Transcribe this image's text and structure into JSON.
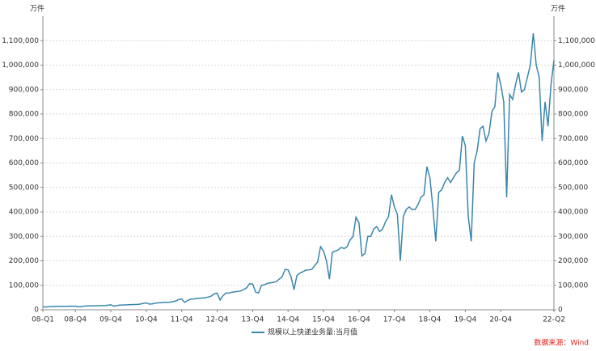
{
  "chart_data": {
    "type": "line",
    "y_unit": "万件",
    "y2_unit": "万件",
    "categories": [
      "08-Q1",
      null,
      null,
      null,
      null,
      null,
      null,
      null,
      null,
      null,
      null,
      "08-Q4",
      null,
      null,
      null,
      null,
      null,
      null,
      null,
      null,
      null,
      null,
      null,
      "09-Q4",
      null,
      null,
      null,
      null,
      null,
      null,
      null,
      null,
      null,
      null,
      null,
      "10-Q4",
      null,
      null,
      null,
      null,
      null,
      null,
      null,
      null,
      null,
      null,
      null,
      "11-Q4",
      null,
      null,
      null,
      null,
      null,
      null,
      null,
      null,
      null,
      null,
      null,
      "12-Q4",
      null,
      null,
      null,
      null,
      null,
      null,
      null,
      null,
      null,
      null,
      null,
      "13-Q4",
      null,
      null,
      null,
      null,
      null,
      null,
      null,
      null,
      null,
      null,
      null,
      "14-Q4",
      null,
      null,
      null,
      null,
      null,
      null,
      null,
      null,
      null,
      null,
      null,
      "15-Q4",
      null,
      null,
      null,
      null,
      null,
      null,
      null,
      null,
      null,
      null,
      null,
      "16-Q4",
      null,
      null,
      null,
      null,
      null,
      null,
      null,
      null,
      null,
      null,
      null,
      "17-Q4",
      null,
      null,
      null,
      null,
      null,
      null,
      null,
      null,
      null,
      null,
      null,
      "18-Q4",
      null,
      null,
      null,
      null,
      null,
      null,
      null,
      null,
      null,
      null,
      null,
      "19-Q4",
      null,
      null,
      null,
      null,
      null,
      null,
      null,
      null,
      null,
      null,
      null,
      "20-Q4",
      null,
      null,
      null,
      null,
      null,
      null,
      null,
      null,
      null,
      null,
      null,
      null,
      null,
      null,
      null,
      null,
      null,
      "22-Q2"
    ],
    "series": [
      {
        "name": "规模以上快递业务量:当月值",
        "color": "#3a86ad",
        "values": [
          12000,
          11000,
          13000,
          13000,
          13500,
          13500,
          14000,
          14000,
          14000,
          14500,
          14500,
          15000,
          12000,
          13000,
          15000,
          15500,
          15500,
          16000,
          16000,
          16500,
          17000,
          17500,
          18500,
          20000,
          15000,
          17000,
          19000,
          19500,
          20000,
          20500,
          21000,
          21500,
          22000,
          23000,
          26000,
          28000,
          23000,
          24000,
          27000,
          28000,
          29000,
          30000,
          30000,
          31000,
          33000,
          36000,
          42000,
          44000,
          30000,
          38000,
          43000,
          44000,
          46000,
          47000,
          48000,
          49000,
          52000,
          56000,
          65000,
          68000,
          40000,
          58000,
          68000,
          68000,
          72000,
          73000,
          75000,
          77000,
          83000,
          90000,
          107000,
          105000,
          73000,
          68000,
          100000,
          102000,
          108000,
          110000,
          112000,
          115000,
          125000,
          135000,
          165000,
          163000,
          135000,
          82000,
          140000,
          150000,
          155000,
          162000,
          163000,
          165000,
          180000,
          195000,
          258000,
          240000,
          200000,
          125000,
          235000,
          240000,
          245000,
          255000,
          250000,
          258000,
          285000,
          300000,
          378000,
          355000,
          220000,
          230000,
          300000,
          300000,
          330000,
          340000,
          320000,
          330000,
          360000,
          380000,
          470000,
          420000,
          390000,
          200000,
          380000,
          410000,
          420000,
          410000,
          410000,
          430000,
          460000,
          470000,
          585000,
          540000,
          420000,
          280000,
          480000,
          490000,
          520000,
          540000,
          520000,
          540000,
          560000,
          570000,
          710000,
          670000,
          380000,
          280000,
          600000,
          650000,
          740000,
          750000,
          690000,
          720000,
          810000,
          830000,
          970000,
          920000,
          850000,
          460000,
          880000,
          860000,
          920000,
          970000,
          890000,
          900000,
          950000,
          1000000,
          1130000,
          1000000,
          950000,
          690000,
          850000,
          750000,
          920000,
          1020000
        ]
      }
    ],
    "ylim": [
      0,
      1200000
    ],
    "yticks": [
      0,
      {
        "value": 100000,
        "label": "100,000"
      },
      {
        "value": 200000,
        "label": "200,000"
      },
      {
        "value": 300000,
        "label": "300,000"
      },
      {
        "value": 400000,
        "label": "400,000"
      },
      {
        "value": 500000,
        "label": "500,000"
      },
      {
        "value": 600000,
        "label": "600,000"
      },
      {
        "value": 700000,
        "label": "700,000"
      },
      {
        "value": 800000,
        "label": "800,000"
      },
      {
        "value": 900000,
        "label": "900,000"
      },
      {
        "value": 1000000,
        "label": "1,000,000"
      },
      {
        "value": 1100000,
        "label": "1,100,000"
      }
    ],
    "y2lim": [
      0,
      1200000
    ],
    "y2ticks": [
      0,
      {
        "value": 100000,
        "label": "100,000"
      },
      {
        "value": 200000,
        "label": "200,000"
      },
      {
        "value": 300000,
        "label": "300,000"
      },
      {
        "value": 400000,
        "label": "400,000"
      },
      {
        "value": 500000,
        "label": "500,000"
      },
      {
        "value": 600000,
        "label": "600,000"
      },
      {
        "value": 700000,
        "label": "700,000"
      },
      {
        "value": 800000,
        "label": "800,000"
      },
      {
        "value": 900000,
        "label": "900,000"
      },
      {
        "value": 1000000,
        "label": "1,000,000"
      },
      {
        "value": 1100000,
        "label": "1,100,000"
      }
    ],
    "grid": true,
    "source": "数据来源：Wind"
  }
}
